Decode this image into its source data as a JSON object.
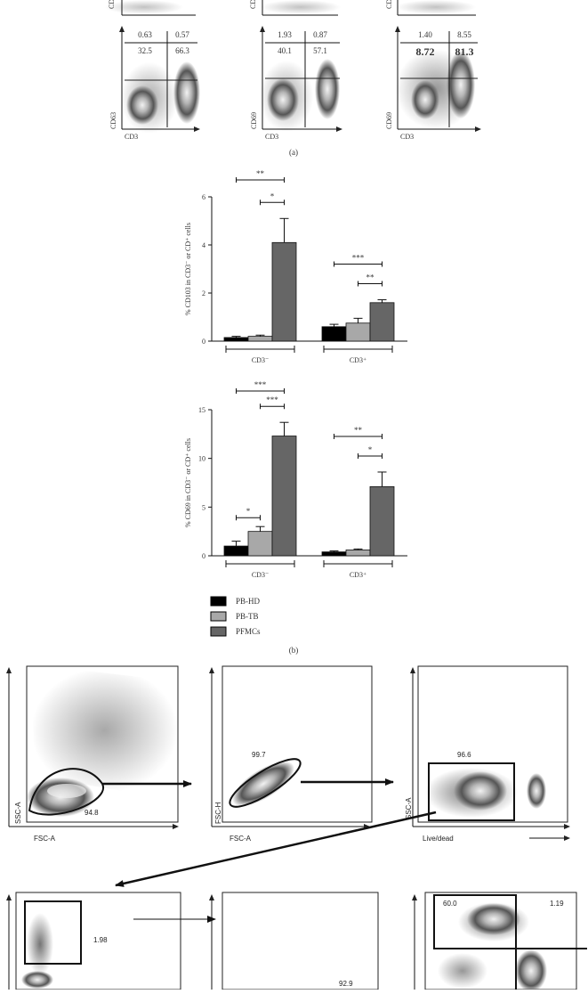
{
  "panel_a": {
    "caption": "(a)",
    "top_row_labels": [
      "CD",
      "CD",
      "CD"
    ],
    "plots": [
      {
        "ylabel": "CD63",
        "xlabel": "CD3",
        "q_ul": "0.63",
        "q_ur": "0.57",
        "q_ll": "32.5",
        "q_lr": "66.3"
      },
      {
        "ylabel": "CD69",
        "xlabel": "CD3",
        "q_ul": "1.93",
        "q_ur": "0.87",
        "q_ll": "40.1",
        "q_lr": "57.1"
      },
      {
        "ylabel": "CD69",
        "xlabel": "CD3",
        "q_ul": "1.40",
        "q_ur": "8.55",
        "q_ll": "8.72",
        "q_lr": "81.3"
      }
    ]
  },
  "panel_b": {
    "caption": "(b)",
    "legend": [
      {
        "name": "PB-HD",
        "color": "#000000"
      },
      {
        "name": "PB-TB",
        "color": "#a8a8a8"
      },
      {
        "name": "PFMCs",
        "color": "#666666"
      }
    ]
  },
  "chart_data": [
    {
      "type": "bar",
      "ylabel": "% CD103 in CD3⁻ or CD⁺ cells",
      "ylim": [
        0,
        6
      ],
      "yticks": [
        "0",
        "2",
        "4",
        "6"
      ],
      "categories": [
        "CD3⁻",
        "CD3⁺"
      ],
      "series": [
        {
          "name": "PB-HD",
          "values": [
            0.15,
            0.6
          ],
          "errors": [
            0.05,
            0.1
          ]
        },
        {
          "name": "PB-TB",
          "values": [
            0.2,
            0.75
          ],
          "errors": [
            0.05,
            0.2
          ]
        },
        {
          "name": "PFMCs",
          "values": [
            4.1,
            1.6
          ],
          "errors": [
            1.0,
            0.12
          ]
        }
      ],
      "significance": [
        {
          "group": 0,
          "from": 0,
          "to": 2,
          "label": "**"
        },
        {
          "group": 0,
          "from": 1,
          "to": 2,
          "label": "*"
        },
        {
          "group": 1,
          "from": 0,
          "to": 2,
          "label": "***"
        },
        {
          "group": 1,
          "from": 1,
          "to": 2,
          "label": "**"
        }
      ]
    },
    {
      "type": "bar",
      "ylabel": "% CD69 in CD3⁻ or CD⁺ cells",
      "ylim": [
        0,
        15
      ],
      "yticks": [
        "0",
        "5",
        "10",
        "15"
      ],
      "categories": [
        "CD3⁻",
        "CD3⁺"
      ],
      "series": [
        {
          "name": "PB-HD",
          "values": [
            1.0,
            0.4
          ],
          "errors": [
            0.5,
            0.1
          ]
        },
        {
          "name": "PB-TB",
          "values": [
            2.5,
            0.6
          ],
          "errors": [
            0.5,
            0.1
          ]
        },
        {
          "name": "PFMCs",
          "values": [
            12.3,
            7.1
          ],
          "errors": [
            1.4,
            1.5
          ]
        }
      ],
      "significance": [
        {
          "group": 0,
          "from": 0,
          "to": 2,
          "label": "***"
        },
        {
          "group": 0,
          "from": 1,
          "to": 2,
          "label": "***"
        },
        {
          "group": 0,
          "from": 0,
          "to": 1,
          "label": "*"
        },
        {
          "group": 1,
          "from": 0,
          "to": 2,
          "label": "**"
        },
        {
          "group": 1,
          "from": 1,
          "to": 2,
          "label": "*"
        }
      ]
    }
  ],
  "panel_c": {
    "row1": [
      {
        "ylabel": "SSC-A",
        "xlabel": "FSC-A",
        "gate": "94.8"
      },
      {
        "ylabel": "FSC-H",
        "xlabel": "FSC-A",
        "gate": "99.7"
      },
      {
        "ylabel": "SSC-A",
        "xlabel": "Live/dead",
        "gate": "96.6"
      }
    ],
    "row2": [
      {
        "gate": "1.98"
      },
      {
        "gate": "92.9"
      },
      {
        "gate_ul": "60.0",
        "gate_ur": "1.19"
      }
    ]
  }
}
